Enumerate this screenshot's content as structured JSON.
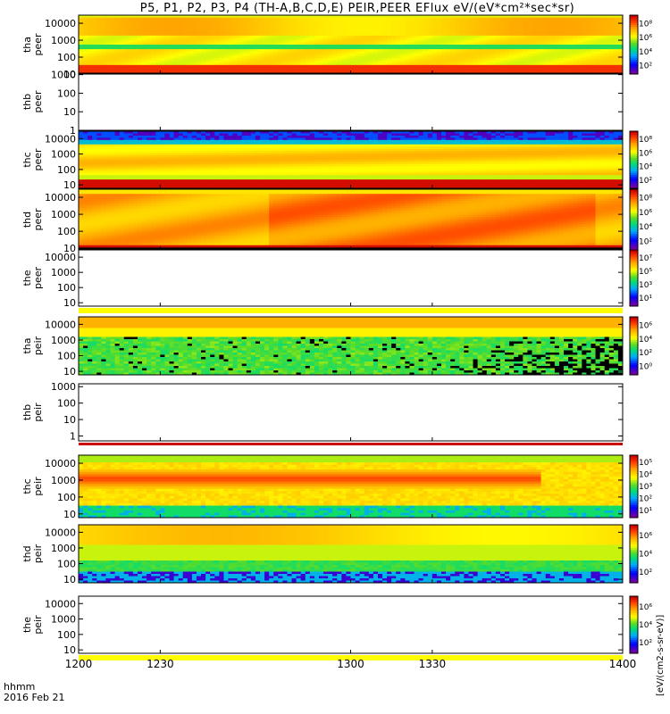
{
  "title": "P5, P1, P2, P3, P4 (TH-A,B,C,D,E) PEIR,PEER EFlux eV/(eV*cm²*sec*sr)",
  "time_axis": {
    "unit_label": "hhmm",
    "date_label": "2016 Feb 21",
    "ticks": [
      "1200",
      "1230",
      "1300",
      "1330",
      "1400"
    ],
    "xlim": [
      1200,
      1400
    ]
  },
  "colorbar_label": "[eV/(cm2-s-sr-eV)]",
  "colors": {
    "saturated": "#c80000",
    "background_band": "#ffff00",
    "missing": "#000000"
  },
  "chart_data": [
    {
      "type": "heatmap",
      "panel": "tha-peer",
      "ylabel": [
        "tha",
        "peer"
      ],
      "ylim": [
        10,
        30000
      ],
      "yticks": [
        "10000",
        "1000",
        "100",
        "10"
      ],
      "cbar_ticks": [
        "10⁸",
        "10⁶",
        "10⁴",
        "10²"
      ],
      "profile": "peer_a"
    },
    {
      "type": "heatmap",
      "panel": "thb-peer",
      "ylabel": [
        "thb",
        "peer"
      ],
      "ylim": [
        1,
        1200
      ],
      "yticks": [
        "1000",
        "100",
        "10",
        "1"
      ],
      "cbar_ticks": [],
      "profile": "empty"
    },
    {
      "type": "heatmap",
      "panel": "thc-peer",
      "ylabel": [
        "thc",
        "peer"
      ],
      "ylim": [
        6,
        30000
      ],
      "yticks": [
        "10000",
        "1000",
        "100",
        "10"
      ],
      "cbar_ticks": [
        "10⁸",
        "10⁶",
        "10⁴",
        "10²"
      ],
      "profile": "peer_c"
    },
    {
      "type": "heatmap",
      "panel": "thd-peer",
      "ylabel": [
        "thd",
        "peer"
      ],
      "ylim": [
        8,
        30000
      ],
      "yticks": [
        "10000",
        "1000",
        "100",
        "10"
      ],
      "cbar_ticks": [
        "10⁸",
        "10⁶",
        "10⁴",
        "10²"
      ],
      "profile": "peer_d"
    },
    {
      "type": "heatmap",
      "panel": "the-peer",
      "ylabel": [
        "the",
        "peer"
      ],
      "ylim": [
        6,
        30000
      ],
      "yticks": [
        "10000",
        "1000",
        "100",
        "10"
      ],
      "cbar_ticks": [
        "10⁷",
        "10⁵",
        "10³",
        "10¹"
      ],
      "profile": "empty_band"
    },
    {
      "type": "heatmap",
      "panel": "tha-peir",
      "ylabel": [
        "tha",
        "peir"
      ],
      "ylim": [
        6,
        30000
      ],
      "yticks": [
        "10000",
        "1000",
        "100",
        "10"
      ],
      "cbar_ticks": [
        "10⁶",
        "10⁴",
        "10²",
        "10⁰"
      ],
      "profile": "peir_a"
    },
    {
      "type": "heatmap",
      "panel": "thb-peir",
      "ylabel": [
        "thb",
        "peir"
      ],
      "ylim": [
        0.5,
        1500
      ],
      "yticks": [
        "1000",
        "100",
        "10",
        "1"
      ],
      "cbar_ticks": [],
      "profile": "empty_red"
    },
    {
      "type": "heatmap",
      "panel": "thc-peir",
      "ylabel": [
        "thc",
        "peir"
      ],
      "ylim": [
        6,
        30000
      ],
      "yticks": [
        "10000",
        "1000",
        "100",
        "10"
      ],
      "cbar_ticks": [
        "10⁵",
        "10⁴",
        "10³",
        "10²",
        "10¹"
      ],
      "profile": "peir_c"
    },
    {
      "type": "heatmap",
      "panel": "thd-peir",
      "ylabel": [
        "thd",
        "peir"
      ],
      "ylim": [
        6,
        30000
      ],
      "yticks": [
        "10000",
        "1000",
        "100",
        "10"
      ],
      "cbar_ticks": [
        "10⁶",
        "10⁴",
        "10²"
      ],
      "profile": "peir_d"
    },
    {
      "type": "heatmap",
      "panel": "the-peir",
      "ylabel": [
        "the",
        "peir"
      ],
      "ylim": [
        6,
        30000
      ],
      "yticks": [
        "10000",
        "1000",
        "100",
        "10"
      ],
      "cbar_ticks": [
        "10⁶",
        "10⁴",
        "10²"
      ],
      "profile": "empty_band"
    }
  ]
}
